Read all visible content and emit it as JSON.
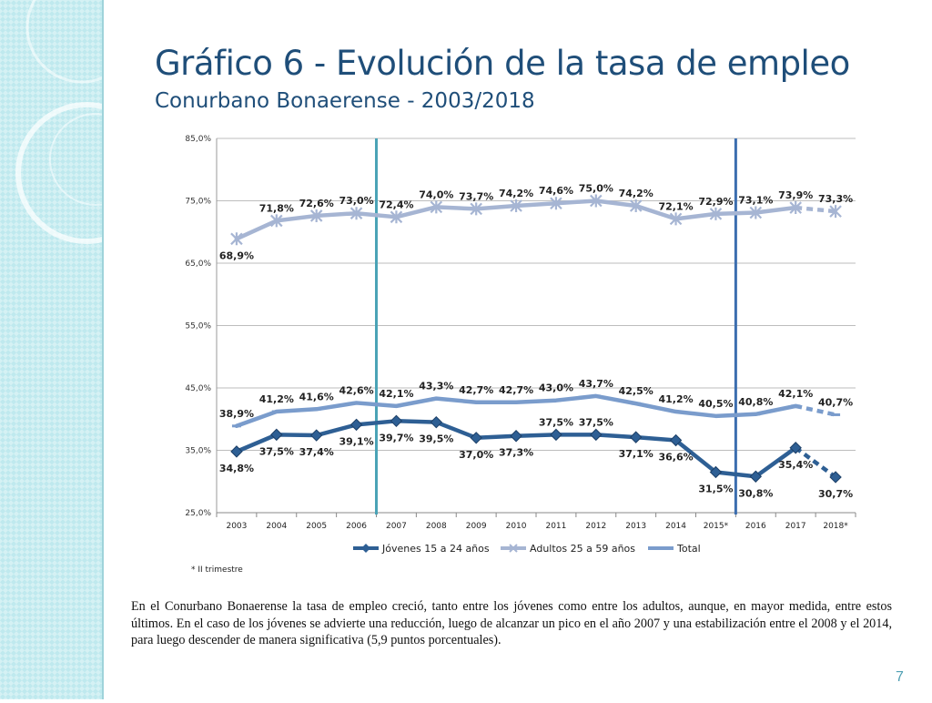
{
  "slide": {
    "title": "Gráfico 6 - Evolución de la tasa de empleo",
    "subtitle": "Conurbano Bonaerense - 2003/2018",
    "paragraph": "En el Conurbano Bonaerense la tasa de empleo creció, tanto entre los jóvenes como entre los adultos, aunque, en mayor medida, entre estos últimos. En el caso de los jóvenes se advierte una reducción, luego de alcanzar un pico en el año 2007 y una estabilización entre el 2008 y el 2014, para luego descender de manera significativa (5,9 puntos porcentuales).",
    "page_number": "7",
    "footnote": "* II trimestre"
  },
  "colors": {
    "title": "#1f4e79",
    "jovenes": "#2e5f94",
    "adultos": "#a6b5d3",
    "total": "#7a9ccc",
    "marker_line_1": "#4aa3b6",
    "marker_line_2": "#3c6eaf"
  },
  "chart_data": {
    "type": "line",
    "categories": [
      "2003",
      "2004",
      "2005",
      "2006",
      "2007",
      "2008",
      "2009",
      "2010",
      "2011",
      "2012",
      "2013",
      "2014",
      "2015*",
      "2016",
      "2017",
      "2018*"
    ],
    "ylim": [
      25,
      85
    ],
    "yticks": [
      25,
      35,
      45,
      55,
      65,
      75,
      85
    ],
    "ytick_labels": [
      "25,0%",
      "35,0%",
      "45,0%",
      "55,0%",
      "65,0%",
      "75,0%",
      "85,0%"
    ],
    "grid": true,
    "legend_position": "bottom",
    "series": [
      {
        "name": "Jóvenes 15 a 24 años",
        "values": [
          34.8,
          37.5,
          37.4,
          39.1,
          39.7,
          39.5,
          37.0,
          37.3,
          37.5,
          37.5,
          37.1,
          36.6,
          31.5,
          30.8,
          35.4,
          30.7
        ],
        "labels": [
          "34,8%",
          "37,5%",
          "37,4%",
          "39,1%",
          "39,7%",
          "39,5%",
          "37,0%",
          "37,3%",
          "37,5%",
          "37,5%",
          "37,1%",
          "36,6%",
          "31,5%",
          "30,8%",
          "35,4%",
          "30,7%"
        ],
        "label_pos": [
          "below",
          "below",
          "below",
          "below",
          "below",
          "below",
          "below",
          "below",
          "above",
          "above",
          "below",
          "below",
          "below",
          "below",
          "below",
          "below"
        ],
        "dashed_last": true
      },
      {
        "name": "Adultos 25 a 59 años",
        "values": [
          68.9,
          71.8,
          72.6,
          73.0,
          72.4,
          74.0,
          73.7,
          74.2,
          74.6,
          75.0,
          74.2,
          72.1,
          72.9,
          73.1,
          73.9,
          73.3
        ],
        "labels": [
          "68,9%",
          "71,8%",
          "72,6%",
          "73,0%",
          "72,4%",
          "74,0%",
          "73,7%",
          "74,2%",
          "74,6%",
          "75,0%",
          "74,2%",
          "72,1%",
          "72,9%",
          "73,1%",
          "73,9%",
          "73,3%"
        ],
        "label_pos": [
          "below",
          "above",
          "above",
          "above",
          "above",
          "above",
          "above",
          "above",
          "above",
          "above",
          "above",
          "above",
          "above",
          "above",
          "above",
          "above"
        ],
        "dashed_last": true
      },
      {
        "name": "Total",
        "values": [
          38.9,
          41.2,
          41.6,
          42.6,
          42.1,
          43.3,
          42.7,
          42.7,
          43.0,
          43.7,
          42.5,
          41.2,
          40.5,
          40.8,
          42.1,
          40.7
        ],
        "labels": [
          "38,9%",
          "41,2%",
          "41,6%",
          "42,6%",
          "42,1%",
          "43,3%",
          "42,7%",
          "42,7%",
          "43,0%",
          "43,7%",
          "42,5%",
          "41,2%",
          "40,5%",
          "40,8%",
          "42,1%",
          "40,7%"
        ],
        "label_pos": [
          "above",
          "above",
          "above",
          "above",
          "above",
          "above",
          "above",
          "above",
          "above",
          "above",
          "above",
          "above",
          "above",
          "above",
          "above",
          "above"
        ],
        "dashed_last": true
      }
    ],
    "vertical_markers": [
      {
        "between": [
          "2006",
          "2007"
        ],
        "color_key": "marker_line_1"
      },
      {
        "between": [
          "2015*",
          "2016"
        ],
        "color_key": "marker_line_2"
      }
    ]
  }
}
